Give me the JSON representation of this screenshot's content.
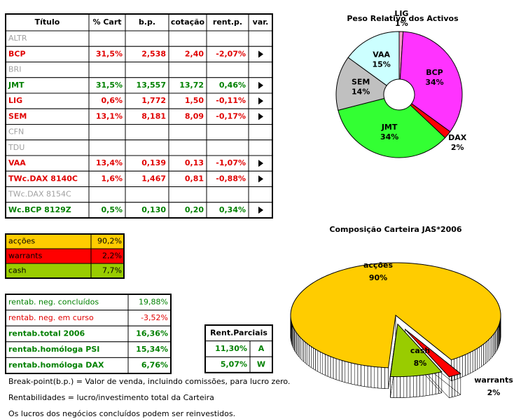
{
  "portfolio": {
    "headers": [
      "Título",
      "% Cart",
      "b.p.",
      "cotação",
      "rent.p.",
      "var."
    ],
    "rows": [
      {
        "name": "ALTR",
        "color": "#a0a0a0",
        "cells": []
      },
      {
        "name": "BCP",
        "color": "#e00000",
        "cells": [
          "31,5%",
          "2,538",
          "2,40",
          "-2,07%"
        ]
      },
      {
        "name": "BRI",
        "color": "#a0a0a0",
        "cells": []
      },
      {
        "name": "JMT",
        "color": "#008000",
        "cells": [
          "31,5%",
          "13,557",
          "13,72",
          "0,46%"
        ]
      },
      {
        "name": "LIG",
        "color": "#e00000",
        "cells": [
          "0,6%",
          "1,772",
          "1,50",
          "-0,11%"
        ]
      },
      {
        "name": "SEM",
        "color": "#e00000",
        "cells": [
          "13,1%",
          "8,181",
          "8,09",
          "-0,17%"
        ]
      },
      {
        "name": "CFN",
        "color": "#a0a0a0",
        "cells": []
      },
      {
        "name": "TDU",
        "color": "#a0a0a0",
        "cells": []
      },
      {
        "name": "VAA",
        "color": "#e00000",
        "cells": [
          "13,4%",
          "0,139",
          "0,13",
          "-1,07%"
        ]
      },
      {
        "name": "TWc.DAX 8140C",
        "color": "#e00000",
        "cells": [
          "1,6%",
          "1,467",
          "0,81",
          "-0,88%"
        ]
      },
      {
        "name": "TWc.DAX 8154C",
        "color": "#a0a0a0",
        "cells": []
      },
      {
        "name": "Wc.BCP 8129Z",
        "color": "#008000",
        "cells": [
          "0,5%",
          "0,130",
          "0,20",
          "0,34%"
        ]
      }
    ]
  },
  "allocation": {
    "rows": [
      {
        "label": "acções",
        "value": "90,2%",
        "bg": "#ffcc00"
      },
      {
        "label": "warrants",
        "value": "2,2%",
        "bg": "#ff0000"
      },
      {
        "label": "cash",
        "value": "7,7%",
        "bg": "#99cc00"
      }
    ]
  },
  "returns": {
    "rows": [
      {
        "label": "rentab. neg. concluídos",
        "value": "19,88%",
        "color": "#008000",
        "bold": false
      },
      {
        "label": "rentab. neg. em curso",
        "value": "-3,52%",
        "color": "#e00000",
        "bold": false
      },
      {
        "label": "rentab.total 2006",
        "value": "16,36%",
        "color": "#008000",
        "bold": true
      },
      {
        "label": "rentab.homóloga PSI",
        "value": "15,34%",
        "color": "#008000",
        "bold": true
      },
      {
        "label": "rentab.homóloga DAX",
        "value": "6,76%",
        "color": "#008000",
        "bold": true
      }
    ]
  },
  "partials": {
    "header": "Rent.Parciais",
    "rows": [
      [
        "11,30%",
        "A"
      ],
      [
        "5,07%",
        "W"
      ]
    ]
  },
  "notes": [
    "Break-point(b.p.) = Valor de venda, incluindo comissões, para lucro zero.",
    "Rentabilidades = lucro/investimento total da Carteira",
    "Os lucros dos negócios concluídos podem ser reinvestidos."
  ],
  "chart_data": [
    {
      "type": "pie",
      "title": "Peso Relativo dos Activos",
      "categories": [
        "LIG",
        "BCP",
        "DAX",
        "JMT",
        "SEM",
        "VAA"
      ],
      "values": [
        1,
        34,
        2,
        34,
        14,
        15
      ],
      "value_labels": [
        "1%",
        "34%",
        "2%",
        "34%",
        "14%",
        "15%"
      ],
      "colors": [
        "#ff99cc",
        "#ff33ff",
        "#ff0000",
        "#33ff33",
        "#c0c0c0",
        "#ccffff"
      ],
      "donut": true
    },
    {
      "type": "pie3d",
      "title": "Composição Carteira JAS*2006",
      "categories": [
        "acções",
        "warrants",
        "cash"
      ],
      "values": [
        90,
        2,
        8
      ],
      "value_labels": [
        "90%",
        "2%",
        "8%"
      ],
      "colors": [
        "#ffcc00",
        "#ff0000",
        "#99cc00"
      ]
    }
  ]
}
